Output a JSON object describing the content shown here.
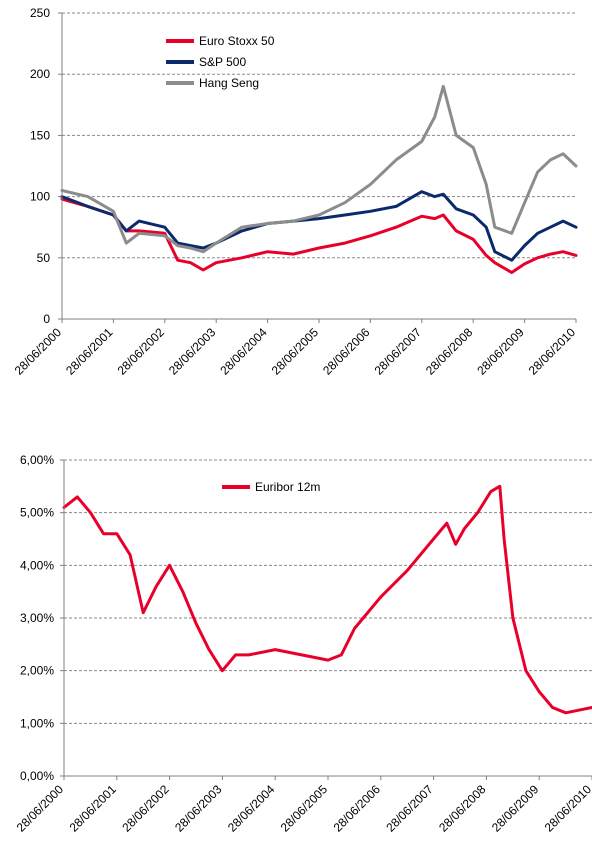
{
  "colors": {
    "euro_stoxx": "#E8002A",
    "sp500": "#0B2A6B",
    "hang_seng": "#8C8C8C",
    "euribor": "#E8002A",
    "grid": "#808080"
  },
  "chart_data": [
    {
      "type": "line",
      "title": "",
      "xlabel": "",
      "ylabel": "",
      "ylim": [
        0,
        250
      ],
      "y_ticks": [
        "250",
        "200",
        "150",
        "100",
        "50",
        "0"
      ],
      "y_tick_values": [
        250,
        200,
        150,
        100,
        50,
        0
      ],
      "x_ticks": [
        "28/06/2000",
        "28/06/2001",
        "28/06/2002",
        "28/06/2003",
        "28/06/2004",
        "28/06/2005",
        "28/06/2006",
        "28/06/2007",
        "28/06/2008",
        "28/06/2009",
        "28/06/2010"
      ],
      "grid": "horizontal dashed",
      "legend_position": "top-left",
      "x_dates": [
        "2000-06-28",
        "2000-12-28",
        "2001-06-28",
        "2001-09-28",
        "2001-12-28",
        "2002-06-28",
        "2002-09-28",
        "2002-12-28",
        "2003-03-28",
        "2003-06-28",
        "2003-12-28",
        "2004-06-28",
        "2004-12-28",
        "2005-06-28",
        "2005-12-28",
        "2006-06-28",
        "2006-12-28",
        "2007-06-28",
        "2007-09-28",
        "2007-11-28",
        "2008-02-28",
        "2008-06-28",
        "2008-09-28",
        "2008-11-28",
        "2009-03-28",
        "2009-06-28",
        "2009-09-28",
        "2009-12-28",
        "2010-03-28",
        "2010-06-28"
      ],
      "series": [
        {
          "name": "Euro Stoxx 50",
          "color_key": "euro_stoxx",
          "values": [
            98,
            92,
            85,
            72,
            72,
            70,
            48,
            46,
            40,
            46,
            50,
            55,
            53,
            58,
            62,
            68,
            75,
            84,
            82,
            85,
            72,
            65,
            52,
            46,
            38,
            45,
            50,
            53,
            55,
            52
          ]
        },
        {
          "name": "S&P 500",
          "color_key": "sp500",
          "values": [
            100,
            92,
            85,
            72,
            80,
            75,
            62,
            60,
            58,
            62,
            72,
            78,
            80,
            82,
            85,
            88,
            92,
            104,
            100,
            102,
            90,
            85,
            75,
            55,
            48,
            60,
            70,
            75,
            80,
            75
          ]
        },
        {
          "name": "Hang Seng",
          "color_key": "hang_seng",
          "values": [
            105,
            100,
            88,
            62,
            70,
            68,
            60,
            58,
            55,
            62,
            75,
            78,
            80,
            85,
            95,
            110,
            130,
            145,
            165,
            190,
            150,
            140,
            110,
            75,
            70,
            95,
            120,
            130,
            135,
            125
          ]
        }
      ]
    },
    {
      "type": "line",
      "title": "",
      "xlabel": "",
      "ylabel": "",
      "ylim": [
        0,
        6
      ],
      "y_ticks": [
        "6,00%",
        "5,00%",
        "4,00%",
        "3,00%",
        "2,00%",
        "1,00%",
        "0,00%"
      ],
      "y_tick_values": [
        6,
        5,
        4,
        3,
        2,
        1,
        0
      ],
      "x_ticks": [
        "28/06/2000",
        "28/06/2001",
        "28/06/2002",
        "28/06/2003",
        "28/06/2004",
        "28/06/2005",
        "28/06/2006",
        "28/06/2007",
        "28/06/2008",
        "28/06/2009",
        "28/06/2010"
      ],
      "grid": "horizontal dashed",
      "legend_position": "top-left",
      "x_dates": [
        "2000-06-28",
        "2000-09-28",
        "2000-12-28",
        "2001-03-28",
        "2001-06-28",
        "2001-09-28",
        "2001-12-28",
        "2002-03-28",
        "2002-06-28",
        "2002-09-28",
        "2002-12-28",
        "2003-03-28",
        "2003-06-28",
        "2003-09-28",
        "2003-12-28",
        "2004-06-28",
        "2004-12-28",
        "2005-06-28",
        "2005-09-28",
        "2005-12-28",
        "2006-06-28",
        "2006-12-28",
        "2007-06-28",
        "2007-09-28",
        "2007-11-28",
        "2008-01-28",
        "2008-04-28",
        "2008-07-28",
        "2008-09-28",
        "2008-10-28",
        "2008-12-28",
        "2009-03-28",
        "2009-06-28",
        "2009-09-28",
        "2009-12-28",
        "2010-03-28",
        "2010-06-28"
      ],
      "series": [
        {
          "name": "Euribor 12m",
          "color_key": "euribor",
          "values": [
            5.1,
            5.3,
            5.0,
            4.6,
            4.6,
            4.2,
            3.1,
            3.6,
            4.0,
            3.5,
            2.9,
            2.4,
            2.0,
            2.3,
            2.3,
            2.4,
            2.3,
            2.2,
            2.3,
            2.8,
            3.4,
            3.9,
            4.5,
            4.8,
            4.4,
            4.7,
            5.0,
            5.4,
            5.5,
            4.5,
            3.0,
            2.0,
            1.6,
            1.3,
            1.2,
            1.25,
            1.3
          ]
        }
      ]
    }
  ]
}
